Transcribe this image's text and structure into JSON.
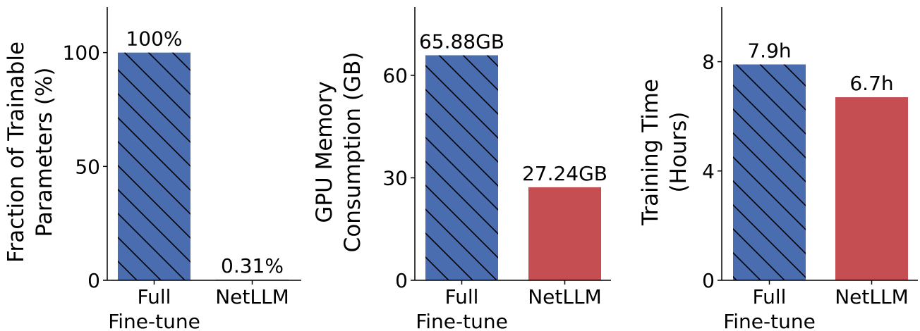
{
  "colors": {
    "full": "#4a6db0",
    "netllm": "#c44e52",
    "hatch": "#000000",
    "axis": "#000000"
  },
  "chart_data": [
    {
      "type": "bar",
      "ylabel_lines": [
        "Fraction of Trainable",
        "Parameters (%)"
      ],
      "categories": [
        [
          "Full",
          "Fine-tune"
        ],
        [
          "NetLLM"
        ]
      ],
      "values": [
        100,
        0.31
      ],
      "value_labels": [
        "100%",
        "0.31%"
      ],
      "ylim": [
        0,
        120
      ],
      "yticks": [
        0,
        50,
        100
      ],
      "hatched": [
        true,
        false
      ],
      "grid": false
    },
    {
      "type": "bar",
      "ylabel_lines": [
        "GPU Memory",
        "Consumption (GB)"
      ],
      "categories": [
        [
          "Full",
          "Fine-tune"
        ],
        [
          "NetLLM"
        ]
      ],
      "values": [
        65.88,
        27.24
      ],
      "value_labels": [
        "65.88GB",
        "27.24GB"
      ],
      "ylim": [
        0,
        80
      ],
      "yticks": [
        0,
        30,
        60
      ],
      "hatched": [
        true,
        false
      ],
      "grid": false
    },
    {
      "type": "bar",
      "ylabel_lines": [
        "Training Time",
        "(Hours)"
      ],
      "categories": [
        [
          "Full",
          "Fine-tune"
        ],
        [
          "NetLLM"
        ]
      ],
      "values": [
        7.9,
        6.7
      ],
      "value_labels": [
        "7.9h",
        "6.7h"
      ],
      "ylim": [
        0,
        10
      ],
      "yticks": [
        0,
        4,
        8
      ],
      "hatched": [
        true,
        false
      ],
      "grid": false
    }
  ]
}
